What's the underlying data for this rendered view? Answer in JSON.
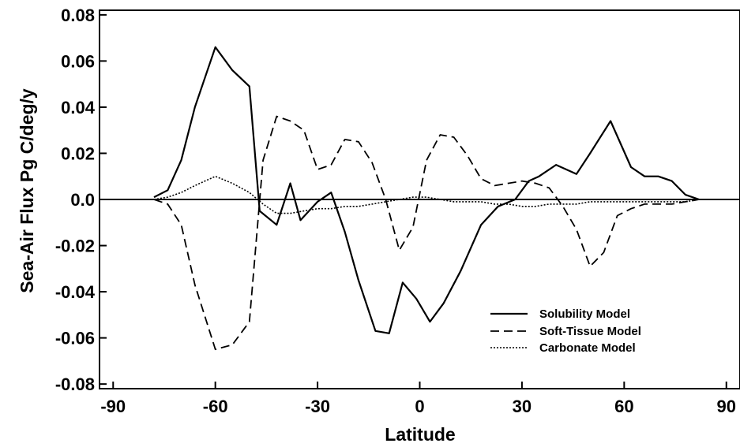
{
  "chart_data": {
    "type": "line",
    "title": "",
    "xlabel": "Latitude",
    "ylabel": "Sea-Air Flux Pg C/deg/y",
    "xlim": [
      -94,
      94
    ],
    "ylim": [
      -0.082,
      0.082
    ],
    "x_ticks": [
      -90,
      -60,
      -30,
      0,
      30,
      60,
      90
    ],
    "x_tick_labels": [
      "-90",
      "-60",
      "-30",
      "0",
      "30",
      "60",
      "90"
    ],
    "y_ticks": [
      0.08,
      0.06,
      0.04,
      0.02,
      0.0,
      -0.02,
      -0.04,
      -0.06,
      -0.08
    ],
    "y_tick_labels": [
      "0.08",
      "0.06",
      "0.04",
      "0.02",
      "0.0",
      "-0.02",
      "-0.04",
      "-0.06",
      "-0.08"
    ],
    "grid": false,
    "zero_line": true,
    "legend_position": "lower-right",
    "series": [
      {
        "name": "Solubility Model",
        "style": "solid",
        "color": "#000000",
        "x": [
          -78,
          -74,
          -70,
          -66,
          -60,
          -55,
          -50,
          -47,
          -42,
          -38,
          -35,
          -30,
          -26,
          -22,
          -18,
          -13,
          -9,
          -5,
          -1,
          3,
          7,
          12,
          18,
          23,
          28,
          32,
          35,
          40,
          46,
          50,
          56,
          62,
          66,
          70,
          74,
          78,
          82
        ],
        "y": [
          0.001,
          0.004,
          0.017,
          0.04,
          0.066,
          0.056,
          0.049,
          -0.005,
          -0.011,
          0.007,
          -0.009,
          -0.001,
          0.003,
          -0.014,
          -0.035,
          -0.057,
          -0.058,
          -0.036,
          -0.043,
          -0.053,
          -0.045,
          -0.031,
          -0.011,
          -0.003,
          0.0,
          0.008,
          0.01,
          0.015,
          0.011,
          0.02,
          0.034,
          0.014,
          0.01,
          0.01,
          0.008,
          0.002,
          0.0
        ]
      },
      {
        "name": "Soft-Tissue Model",
        "style": "dashed",
        "color": "#000000",
        "x": [
          -78,
          -74,
          -70,
          -66,
          -60,
          -55,
          -50,
          -46,
          -42,
          -38,
          -34,
          -30,
          -26,
          -22,
          -18,
          -14,
          -10,
          -6,
          -2,
          2,
          6,
          10,
          14,
          18,
          22,
          26,
          30,
          34,
          38,
          42,
          46,
          50,
          54,
          58,
          62,
          66,
          70,
          74,
          78,
          82
        ],
        "y": [
          0.0,
          -0.002,
          -0.011,
          -0.037,
          -0.065,
          -0.063,
          -0.053,
          0.017,
          0.036,
          0.034,
          0.03,
          0.013,
          0.015,
          0.026,
          0.025,
          0.016,
          0.0,
          -0.022,
          -0.012,
          0.017,
          0.028,
          0.027,
          0.019,
          0.009,
          0.006,
          0.007,
          0.008,
          0.007,
          0.005,
          -0.003,
          -0.013,
          -0.029,
          -0.023,
          -0.007,
          -0.004,
          -0.002,
          -0.002,
          -0.002,
          -0.001,
          0.0
        ]
      },
      {
        "name": "Carbonate Model",
        "style": "dotted",
        "color": "#000000",
        "x": [
          -78,
          -74,
          -70,
          -66,
          -60,
          -55,
          -50,
          -46,
          -42,
          -38,
          -34,
          -30,
          -26,
          -22,
          -18,
          -14,
          -10,
          -6,
          -2,
          2,
          6,
          10,
          14,
          18,
          22,
          26,
          30,
          34,
          38,
          42,
          46,
          50,
          54,
          58,
          62,
          66,
          70,
          74,
          78,
          82
        ],
        "y": [
          0.0,
          0.001,
          0.003,
          0.006,
          0.01,
          0.007,
          0.003,
          -0.002,
          -0.006,
          -0.006,
          -0.005,
          -0.004,
          -0.004,
          -0.003,
          -0.003,
          -0.002,
          -0.001,
          0.0,
          0.001,
          0.001,
          0.0,
          -0.001,
          -0.001,
          -0.001,
          -0.002,
          -0.002,
          -0.003,
          -0.003,
          -0.002,
          -0.002,
          -0.002,
          -0.001,
          -0.001,
          -0.001,
          -0.001,
          -0.001,
          -0.001,
          -0.001,
          -0.001,
          0.0
        ]
      }
    ]
  }
}
